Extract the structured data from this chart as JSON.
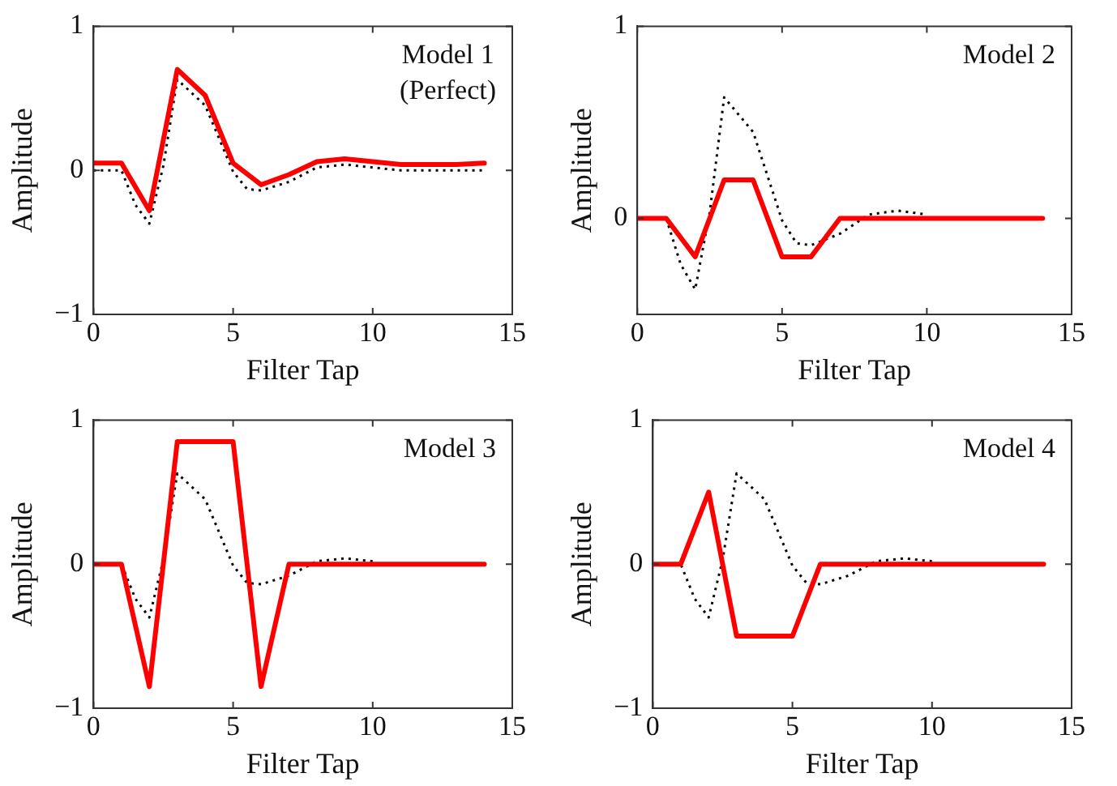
{
  "chart_data": [
    {
      "type": "line",
      "annotations": [
        "Model 1",
        "(Perfect)"
      ],
      "xlabel": "Filter Tap",
      "ylabel": "Amplitude",
      "xlim": [
        0,
        15
      ],
      "xticks": [
        0,
        5,
        10,
        15
      ],
      "ylim": [
        -1,
        1
      ],
      "yticks": [
        -1,
        0,
        1
      ],
      "grid": false,
      "marker": "none",
      "x": [
        0,
        1,
        2,
        3,
        4,
        5,
        6,
        7,
        8,
        9,
        10,
        11,
        12,
        13,
        14
      ],
      "series": [
        {
          "color": "#000000",
          "line_style": "dotted",
          "x": [
            0,
            1,
            1.5,
            2,
            2.5,
            3,
            3.5,
            4,
            4.5,
            5,
            5.5,
            6,
            7,
            8,
            9,
            10,
            11,
            12,
            13,
            14
          ],
          "values": [
            0,
            0,
            -0.24,
            -0.37,
            0.03,
            0.63,
            0.54,
            0.45,
            0.22,
            -0.01,
            -0.13,
            -0.14,
            -0.08,
            0.02,
            0.04,
            0.02,
            0,
            0,
            0,
            0
          ]
        },
        {
          "color": "#ff0000",
          "line_style": "solid",
          "values": [
            0.05,
            0.05,
            -0.28,
            0.7,
            0.52,
            0.05,
            -0.1,
            -0.03,
            0.06,
            0.08,
            0.06,
            0.04,
            0.04,
            0.04,
            0.05
          ]
        }
      ]
    },
    {
      "type": "line",
      "annotations": [
        "Model 2"
      ],
      "xlabel": "Filter Tap",
      "ylabel": "Amplitude",
      "xlim": [
        0,
        15
      ],
      "xticks": [
        0,
        5,
        10,
        15
      ],
      "ylim": [
        -0.5,
        1
      ],
      "yticks": [
        0,
        1
      ],
      "grid": false,
      "marker": "none",
      "x": [
        0,
        1,
        2,
        3,
        4,
        5,
        6,
        7,
        8,
        9,
        10,
        11,
        12,
        13,
        14
      ],
      "series": [
        {
          "color": "#000000",
          "line_style": "dotted",
          "x": [
            0,
            1,
            1.5,
            2,
            2.5,
            3,
            3.5,
            4,
            4.5,
            5,
            5.5,
            6,
            7,
            8,
            9,
            10
          ],
          "values": [
            0,
            0,
            -0.24,
            -0.37,
            0.03,
            0.63,
            0.54,
            0.45,
            0.22,
            -0.01,
            -0.13,
            -0.14,
            -0.08,
            0.02,
            0.04,
            0.02
          ]
        },
        {
          "color": "#ff0000",
          "line_style": "solid",
          "values": [
            0,
            0,
            -0.2,
            0.2,
            0.2,
            -0.2,
            -0.2,
            0,
            0,
            0,
            0,
            0,
            0,
            0,
            0
          ]
        }
      ]
    },
    {
      "type": "line",
      "annotations": [
        "Model 3"
      ],
      "xlabel": "Filter Tap",
      "ylabel": "Amplitude",
      "xlim": [
        0,
        15
      ],
      "xticks": [
        0,
        5,
        10,
        15
      ],
      "ylim": [
        -1,
        1
      ],
      "yticks": [
        -1,
        0,
        1
      ],
      "grid": false,
      "marker": "none",
      "x": [
        0,
        1,
        2,
        3,
        4,
        5,
        6,
        7,
        8,
        9,
        10,
        11,
        12,
        13,
        14
      ],
      "series": [
        {
          "color": "#000000",
          "line_style": "dotted",
          "x": [
            0,
            1,
            1.5,
            2,
            2.5,
            3,
            3.5,
            4,
            4.5,
            5,
            5.5,
            6,
            7,
            8,
            9,
            10
          ],
          "values": [
            0,
            0,
            -0.24,
            -0.37,
            0.03,
            0.63,
            0.54,
            0.45,
            0.22,
            -0.01,
            -0.13,
            -0.14,
            -0.08,
            0.02,
            0.04,
            0.02
          ]
        },
        {
          "color": "#ff0000",
          "line_style": "solid",
          "values": [
            0,
            0,
            -0.85,
            0.85,
            0.85,
            0.85,
            -0.85,
            0,
            0,
            0,
            0,
            0,
            0,
            0,
            0
          ]
        }
      ]
    },
    {
      "type": "line",
      "annotations": [
        "Model 4"
      ],
      "xlabel": "Filter Tap",
      "ylabel": "Amplitude",
      "xlim": [
        0,
        15
      ],
      "xticks": [
        0,
        5,
        10,
        15
      ],
      "ylim": [
        -1,
        1
      ],
      "yticks": [
        -1,
        0,
        1
      ],
      "grid": false,
      "marker": "none",
      "x": [
        0,
        1,
        2,
        3,
        4,
        5,
        6,
        7,
        8,
        9,
        10,
        11,
        12,
        13,
        14
      ],
      "series": [
        {
          "color": "#000000",
          "line_style": "dotted",
          "x": [
            0,
            1,
            1.5,
            2,
            2.5,
            3,
            3.5,
            4,
            4.5,
            5,
            5.5,
            6,
            7,
            8,
            9,
            10
          ],
          "values": [
            0,
            0,
            -0.24,
            -0.37,
            0.03,
            0.63,
            0.54,
            0.45,
            0.22,
            -0.01,
            -0.13,
            -0.14,
            -0.08,
            0.02,
            0.04,
            0.02
          ]
        },
        {
          "color": "#ff0000",
          "line_style": "solid",
          "values": [
            0,
            0,
            0.5,
            -0.5,
            -0.5,
            -0.5,
            0,
            0,
            0,
            0,
            0,
            0,
            0,
            0,
            0
          ]
        }
      ]
    }
  ]
}
